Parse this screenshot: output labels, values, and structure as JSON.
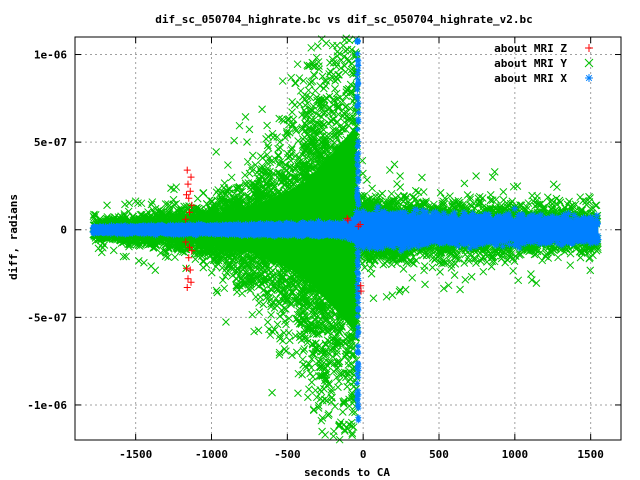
{
  "chart_data": {
    "type": "scatter",
    "title": "dif_sc_050704_highrate.bc vs dif_sc_050704_highrate_v2.bc",
    "xlabel": "seconds to CA",
    "ylabel": "diff, radians",
    "xlim": [
      -1900,
      1700
    ],
    "ylim": [
      -1.2e-06,
      1.1e-06
    ],
    "x_ticks": [
      -1500,
      -1000,
      -500,
      0,
      500,
      1000,
      1500
    ],
    "x_tick_labels": [
      "-1500",
      "-1000",
      "-500",
      "0",
      "500",
      "1000",
      "1500"
    ],
    "y_ticks": [
      -1e-06,
      -5e-07,
      0,
      5e-07,
      1e-06
    ],
    "y_tick_labels": [
      "-1e-06",
      "-5e-07",
      "0",
      "5e-07",
      "1e-06"
    ],
    "grid": true,
    "legend_position": "top-right",
    "series": [
      {
        "name": "about MRI Z",
        "marker": "plus",
        "color": "#ff0000",
        "points": [
          [
            -1160,
            3.4e-07
          ],
          [
            -1160,
            -3.3e-07
          ],
          [
            -1155,
            2.6e-07
          ],
          [
            -1155,
            -2.8e-07
          ],
          [
            -1150,
            1.8e-07
          ],
          [
            -1150,
            -1.6e-07
          ],
          [
            -1145,
            1e-07
          ],
          [
            -1145,
            -1e-07
          ],
          [
            -1140,
            2.2e-07
          ],
          [
            -1140,
            -2.3e-07
          ],
          [
            -1135,
            3e-07
          ],
          [
            -1135,
            -3e-07
          ],
          [
            -1130,
            1.4e-07
          ],
          [
            -1130,
            -1.2e-07
          ],
          [
            -1165,
            2e-07
          ],
          [
            -1165,
            -2.2e-07
          ],
          [
            -1170,
            6e-08
          ],
          [
            -1170,
            -7e-08
          ],
          [
            -20,
            3e-08
          ],
          [
            -16,
            -3.2e-07
          ],
          [
            -14,
            -3.5e-07
          ],
          [
            -32,
            2e-08
          ],
          [
            -105,
            6.5e-08
          ],
          [
            -100,
            5.5e-08
          ]
        ]
      },
      {
        "name": "about MRI Y",
        "marker": "cross",
        "color": "#00c000",
        "segments": [
          {
            "x": [
              -1780,
              -1500
            ],
            "halfwidth": [
              3.5e-08,
              4.5e-08
            ],
            "spread": [
              5e-08,
              7e-08
            ],
            "outliers": 0.06,
            "count": 340
          },
          {
            "x": [
              -1500,
              -1000
            ],
            "halfwidth": [
              4.5e-08,
              9e-08
            ],
            "spread": [
              8e-08,
              1.5e-07
            ],
            "outliers": 0.05,
            "count": 560
          },
          {
            "x": [
              -1000,
              -700
            ],
            "halfwidth": [
              9e-08,
              1.4e-07
            ],
            "spread": [
              1.8e-07,
              3.6e-07
            ],
            "outliers": 0.04,
            "count": 520
          },
          {
            "x": [
              -700,
              -400
            ],
            "halfwidth": [
              1.4e-07,
              2.6e-07
            ],
            "spread": [
              3.6e-07,
              6.8e-07
            ],
            "outliers": 0.03,
            "count": 620
          },
          {
            "x": [
              -400,
              -240
            ],
            "halfwidth": [
              2.6e-07,
              4e-07
            ],
            "spread": [
              6.8e-07,
              1.05e-06
            ],
            "outliers": 0.02,
            "count": 600
          },
          {
            "x": [
              -240,
              -40
            ],
            "halfwidth": [
              4e-07,
              6e-07
            ],
            "spread": [
              1.05e-06,
              1.25e-06
            ],
            "outliers": 0.02,
            "count": 560
          },
          {
            "x": [
              -40,
              300
            ],
            "halfwidth": [
              8e-08,
              9e-08
            ],
            "spread": [
              1.8e-07,
              1.6e-07
            ],
            "outliers": 0.05,
            "count": 620
          },
          {
            "x": [
              300,
              1000
            ],
            "halfwidth": [
              9e-08,
              7e-08
            ],
            "spread": [
              1.6e-07,
              1.5e-07
            ],
            "outliers": 0.05,
            "count": 760
          },
          {
            "x": [
              1000,
              1550
            ],
            "halfwidth": [
              7e-08,
              5e-08
            ],
            "spread": [
              1.4e-07,
              1.2e-07
            ],
            "outliers": 0.05,
            "count": 560
          }
        ]
      },
      {
        "name": "about MRI X",
        "marker": "star",
        "color": "#0080ff",
        "segments": [
          {
            "x": [
              -1780,
              -1000
            ],
            "halfwidth": [
              1.4e-08,
              2e-08
            ],
            "spread": [
              1.8e-08,
              2.5e-08
            ],
            "outliers": 0.0,
            "count": 500
          },
          {
            "x": [
              -1000,
              -100
            ],
            "halfwidth": [
              2e-08,
              3.5e-08
            ],
            "spread": [
              2.5e-08,
              4e-08
            ],
            "outliers": 0.0,
            "count": 600
          },
          {
            "x": [
              -100,
              -45
            ],
            "halfwidth": [
              3.5e-08,
              5e-08
            ],
            "spread": [
              4e-08,
              6e-08
            ],
            "outliers": 0.0,
            "count": 120
          },
          {
            "x": [
              -45,
              300
            ],
            "halfwidth": [
              7e-08,
              6e-08
            ],
            "spread": [
              9e-08,
              8e-08
            ],
            "outliers": 0.0,
            "count": 600
          },
          {
            "x": [
              300,
              1550
            ],
            "halfwidth": [
              6e-08,
              5e-08
            ],
            "spread": [
              8e-08,
              7e-08
            ],
            "outliers": 0.0,
            "count": 1100
          }
        ],
        "spike": {
          "x": [
            -40,
            -30
          ],
          "y_range": [
            -1.1e-06,
            1.1e-06
          ],
          "count": 120
        }
      }
    ]
  }
}
